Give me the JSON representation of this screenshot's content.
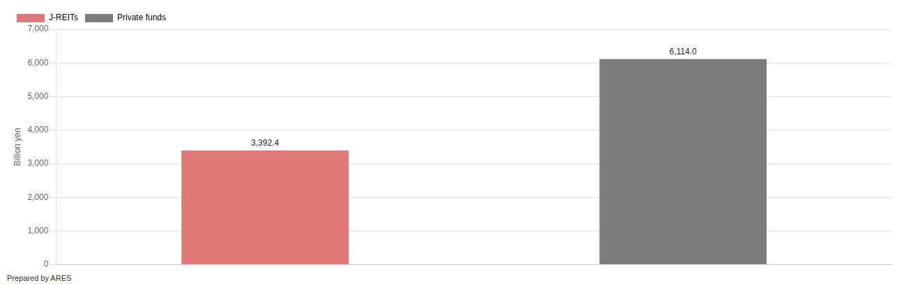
{
  "chart_data": {
    "type": "bar",
    "categories": [
      "J-REITs",
      "Private funds"
    ],
    "values": [
      3392.4,
      6114.0
    ],
    "value_labels": [
      "3,392.4",
      "6,114.0"
    ],
    "colors": [
      "#e07878",
      "#7d7d7d"
    ],
    "ylabel": "Billion yen",
    "ylim": [
      0,
      7000
    ],
    "yticks": [
      0,
      {
        "value": 1000,
        "label": "1,000"
      },
      {
        "value": 2000,
        "label": "2,000"
      },
      {
        "value": 3000,
        "label": "3,000"
      },
      {
        "value": 4000,
        "label": "4,000"
      },
      {
        "value": 5000,
        "label": "5,000"
      },
      {
        "value": 6000,
        "label": "6,000"
      },
      {
        "value": 7000,
        "label": "7,000"
      }
    ],
    "grid": true,
    "legend": "upper left",
    "data_labels": true,
    "tick_labels": "y",
    "annotations": [
      "Prepared by ARES"
    ]
  }
}
